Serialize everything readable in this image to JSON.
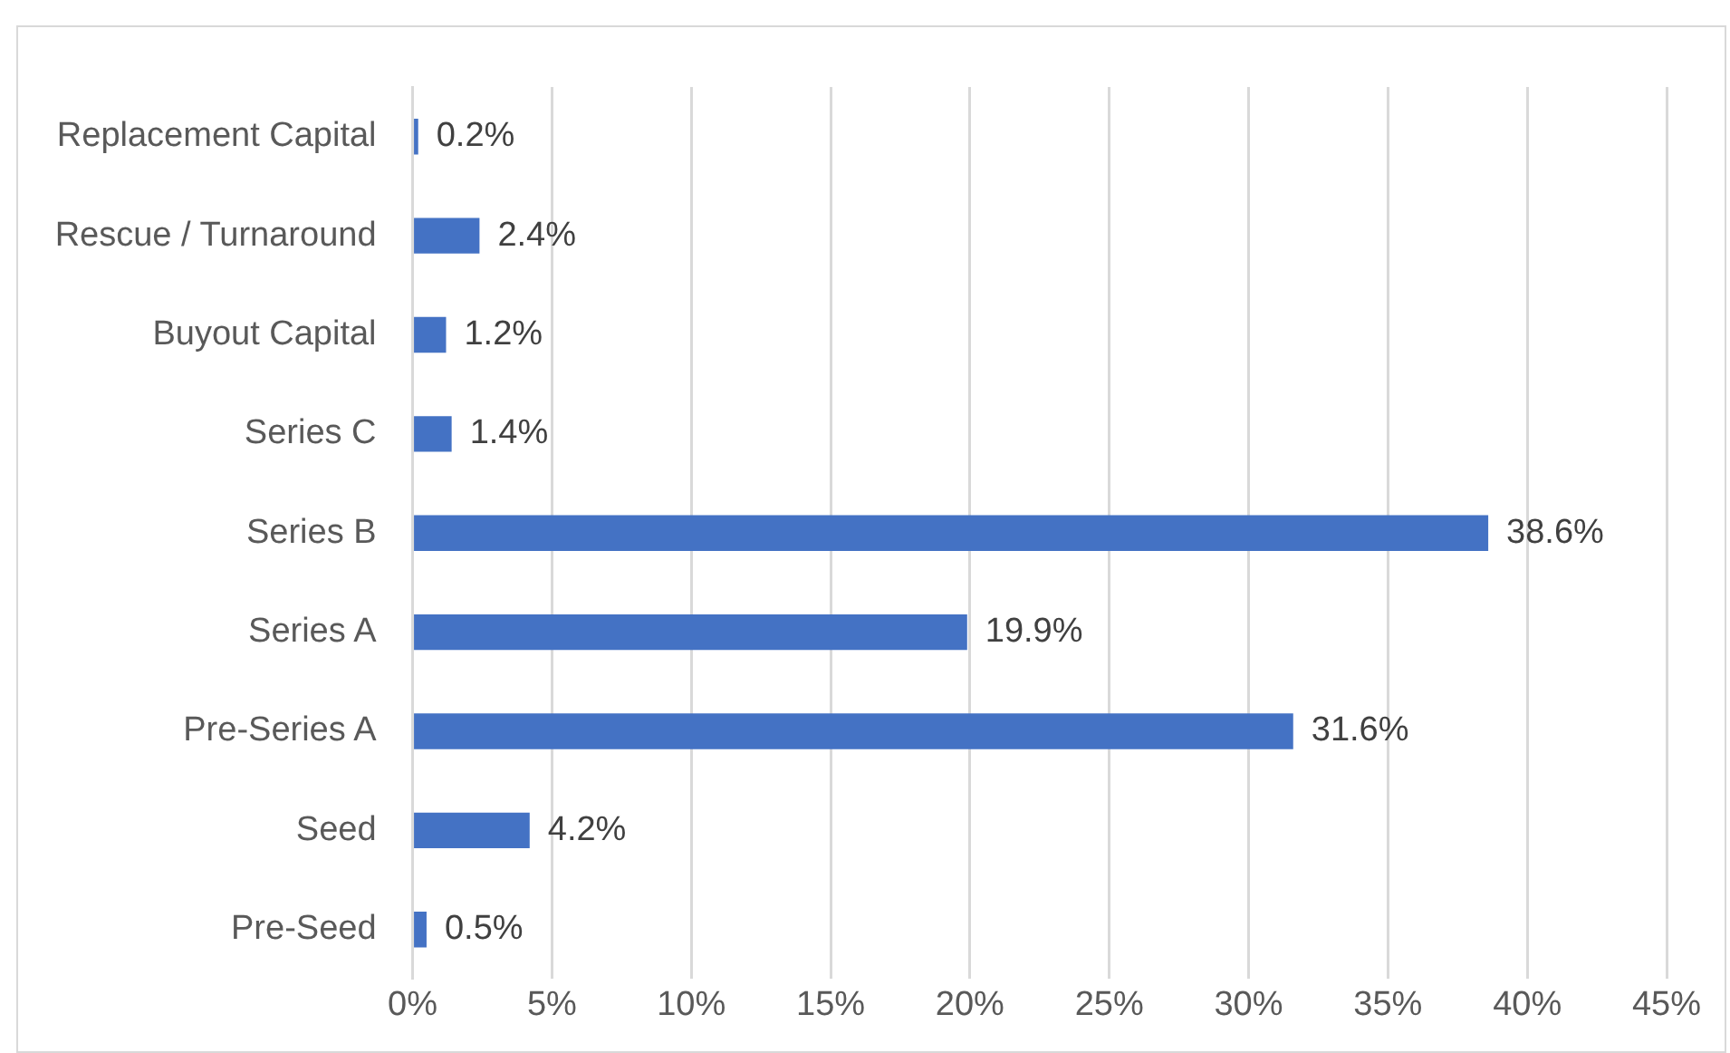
{
  "chart_data": {
    "type": "bar",
    "orientation": "horizontal",
    "categories": [
      "Replacement Capital",
      "Rescue / Turnaround",
      "Buyout Capital",
      "Series C",
      "Series B",
      "Series A",
      "Pre-Series A",
      "Seed",
      "Pre-Seed"
    ],
    "values": [
      0.2,
      2.4,
      1.2,
      1.4,
      38.6,
      19.9,
      31.6,
      4.2,
      0.5
    ],
    "value_labels": [
      "0.2%",
      "2.4%",
      "1.2%",
      "1.4%",
      "38.6%",
      "19.9%",
      "31.6%",
      "4.2%",
      "0.5%"
    ],
    "color": "#4472c4",
    "xlim": [
      0,
      45
    ],
    "xticks": [
      {
        "value": 0,
        "label": "0%"
      },
      {
        "value": 5,
        "label": "5%"
      },
      {
        "value": 10,
        "label": "10%"
      },
      {
        "value": 15,
        "label": "15%"
      },
      {
        "value": 20,
        "label": "20%"
      },
      {
        "value": 25,
        "label": "25%"
      },
      {
        "value": 30,
        "label": "30%"
      },
      {
        "value": 35,
        "label": "35%"
      },
      {
        "value": 40,
        "label": "40%"
      },
      {
        "value": 45,
        "label": "45%"
      }
    ],
    "grid": "x",
    "legend": false
  }
}
